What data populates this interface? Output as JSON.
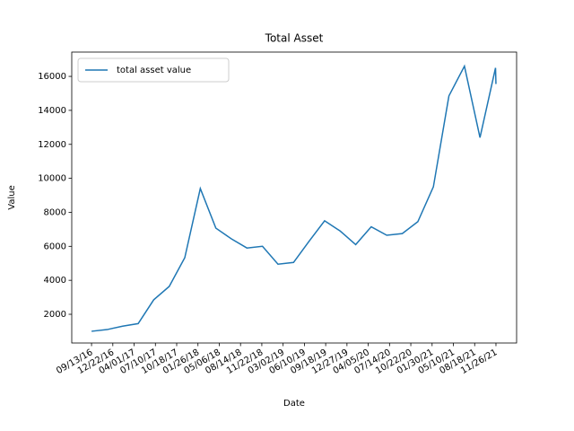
{
  "chart_data": {
    "type": "line",
    "title": "Total Asset",
    "xlabel": "Date",
    "ylabel": "Value",
    "x": [
      "2016-09-13",
      "2016-11-25",
      "2017-02-06",
      "2017-04-20",
      "2017-07-02",
      "2017-09-13",
      "2017-11-25",
      "2018-02-06",
      "2018-04-20",
      "2018-07-02",
      "2018-09-13",
      "2018-11-25",
      "2019-02-06",
      "2019-04-20",
      "2019-07-02",
      "2019-09-13",
      "2019-11-25",
      "2020-02-06",
      "2020-04-19",
      "2020-07-01",
      "2020-09-12",
      "2020-11-24",
      "2021-02-05",
      "2021-04-19",
      "2021-07-01",
      "2021-09-12",
      "2021-11-24",
      "2021-11-26"
    ],
    "series": [
      {
        "name": "total asset value",
        "color": "#1f77b4",
        "values": [
          1000,
          1100,
          1300,
          1450,
          2850,
          3640,
          5330,
          9400,
          7070,
          6440,
          5900,
          6000,
          4950,
          5050,
          6300,
          7500,
          6900,
          6100,
          7150,
          6650,
          6750,
          7450,
          9500,
          14850,
          16600,
          12400,
          16500,
          15550
        ]
      }
    ],
    "xlim": [
      "2016-06-12",
      "2022-03-03"
    ],
    "xticks": [
      {
        "value": "2016-09-13",
        "label": "09/13/16"
      },
      {
        "value": "2016-12-22",
        "label": "12/22/16"
      },
      {
        "value": "2017-04-01",
        "label": "04/01/17"
      },
      {
        "value": "2017-07-10",
        "label": "07/10/17"
      },
      {
        "value": "2017-10-18",
        "label": "10/18/17"
      },
      {
        "value": "2018-01-26",
        "label": "01/26/18"
      },
      {
        "value": "2018-05-06",
        "label": "05/06/18"
      },
      {
        "value": "2018-08-14",
        "label": "08/14/18"
      },
      {
        "value": "2018-11-22",
        "label": "11/22/18"
      },
      {
        "value": "2019-03-02",
        "label": "03/02/19"
      },
      {
        "value": "2019-06-10",
        "label": "06/10/19"
      },
      {
        "value": "2019-09-18",
        "label": "09/18/19"
      },
      {
        "value": "2019-12-27",
        "label": "12/27/19"
      },
      {
        "value": "2020-04-05",
        "label": "04/05/20"
      },
      {
        "value": "2020-07-14",
        "label": "07/14/20"
      },
      {
        "value": "2020-10-22",
        "label": "10/22/20"
      },
      {
        "value": "2021-01-30",
        "label": "01/30/21"
      },
      {
        "value": "2021-05-10",
        "label": "05/10/21"
      },
      {
        "value": "2021-08-18",
        "label": "08/18/21"
      },
      {
        "value": "2021-11-26",
        "label": "11/26/21"
      }
    ],
    "ylim": [
      310,
      17430
    ],
    "yticks": [
      2000,
      4000,
      6000,
      8000,
      10000,
      12000,
      14000,
      16000
    ],
    "legend": "upper left"
  }
}
